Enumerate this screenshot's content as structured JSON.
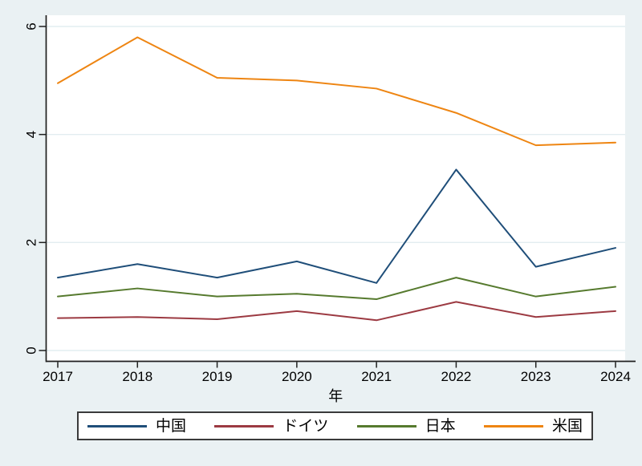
{
  "chart_data": {
    "type": "line",
    "title": "",
    "x": [
      2017,
      2018,
      2019,
      2020,
      2021,
      2022,
      2023,
      2024
    ],
    "xlabel": "年",
    "ylabel": "",
    "ylim": [
      0,
      6
    ],
    "yticks": [
      0,
      2,
      4,
      6
    ],
    "grid": true,
    "legend_position": "bottom",
    "series": [
      {
        "name": "中国",
        "color": "#1f4e79",
        "values": [
          1.35,
          1.6,
          1.35,
          1.65,
          1.25,
          3.35,
          1.55,
          1.9
        ]
      },
      {
        "name": "ドイツ",
        "color": "#9c3a42",
        "values": [
          0.6,
          0.62,
          0.58,
          0.73,
          0.56,
          0.9,
          0.62,
          0.73
        ]
      },
      {
        "name": "日本",
        "color": "#567a2e",
        "values": [
          1.0,
          1.15,
          1.0,
          1.05,
          0.95,
          1.35,
          1.0,
          1.18
        ]
      },
      {
        "name": "米国",
        "color": "#ee8512",
        "values": [
          4.95,
          5.8,
          5.05,
          5.0,
          4.85,
          4.4,
          3.8,
          3.85
        ]
      }
    ]
  },
  "theme": {
    "background": "#eaf1f3",
    "plot_background": "#ffffff",
    "gridline_color": "#e2edf0",
    "axis_color": "#1f1f1f",
    "text_color": "#000000",
    "legend_background": "#ffffff",
    "legend_border_color": "#3a3a3a"
  }
}
